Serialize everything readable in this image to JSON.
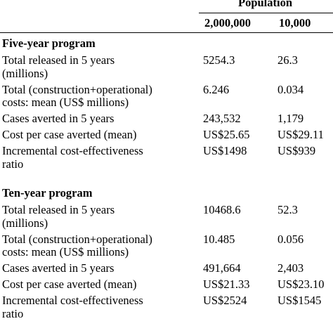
{
  "header": {
    "group_label": "Population",
    "columns": [
      "2,000,000",
      "10,000"
    ]
  },
  "sections": [
    {
      "title": "Five-year program",
      "rows": [
        {
          "label_lines": [
            "Total released in 5 years",
            "(millions)"
          ],
          "values": [
            "5254.3",
            "26.3"
          ]
        },
        {
          "label_lines": [
            "Total (construction+operational)",
            "costs: mean (US$ millions)"
          ],
          "values": [
            "6.246",
            "0.034"
          ]
        },
        {
          "label_lines": [
            "Cases averted in 5 years"
          ],
          "values": [
            "243,532",
            "1,179"
          ]
        },
        {
          "label_lines": [
            "Cost per case averted (mean)"
          ],
          "values": [
            "US$25.65",
            "US$29.11"
          ]
        },
        {
          "label_lines": [
            "Incremental cost-effectiveness",
            "ratio"
          ],
          "values": [
            "US$1498",
            "US$939"
          ]
        }
      ]
    },
    {
      "title": "Ten-year program",
      "rows": [
        {
          "label_lines": [
            "Total released in 5 years",
            "(millions)"
          ],
          "values": [
            "10468.6",
            "52.3"
          ]
        },
        {
          "label_lines": [
            "Total (construction+operational)",
            "costs: mean (US$ millions)"
          ],
          "values": [
            "10.485",
            "0.056"
          ]
        },
        {
          "label_lines": [
            "Cases averted in 5 years"
          ],
          "values": [
            "491,664",
            "2,403"
          ]
        },
        {
          "label_lines": [
            "Cost per case averted (mean)"
          ],
          "values": [
            "US$21.33",
            "US$23.10"
          ]
        },
        {
          "label_lines": [
            "Incremental cost-effectiveness",
            "ratio"
          ],
          "values": [
            "US$2524",
            "US$1545"
          ]
        }
      ]
    }
  ]
}
